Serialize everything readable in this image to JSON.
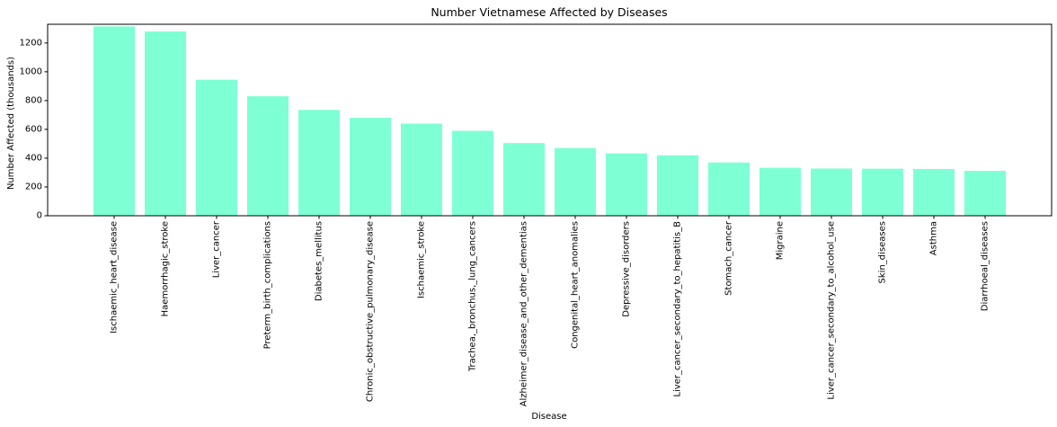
{
  "chart_data": {
    "type": "bar",
    "title": "Number Vietnamese Affected by Diseases",
    "xlabel": "Disease",
    "ylabel": "Number Affected (thousands)",
    "ylim": [
      0,
      1330
    ],
    "yticks": [
      0,
      200,
      400,
      600,
      800,
      1000,
      1200
    ],
    "grid": false,
    "bar_color": "#7fffd4",
    "categories": [
      "Ischaemic_heart_disease",
      "Haemorrhagic_stroke",
      "Liver_cancer",
      "Preterm_birth_complications",
      "Diabetes_mellitus",
      "Chronic_obstructive_pulmonary_disease",
      "Ischaemic_stroke",
      "Trachea,_bronchus,_lung_cancers",
      "Alzheimer_disease_and_other_dementias",
      "Congenital_heart_anomalies",
      "Depressive_disorders",
      "Liver_cancer_secondary_to_hepatitis_B",
      "Stomach_cancer",
      "Migraine",
      "Liver_cancer_secondary_to_alcohol_use",
      "Skin_diseases",
      "Asthma",
      "Diarrhoeal_diseases"
    ],
    "values": [
      1315,
      1280,
      945,
      830,
      735,
      680,
      640,
      590,
      505,
      470,
      433,
      420,
      370,
      333,
      328,
      327,
      325,
      312
    ]
  }
}
